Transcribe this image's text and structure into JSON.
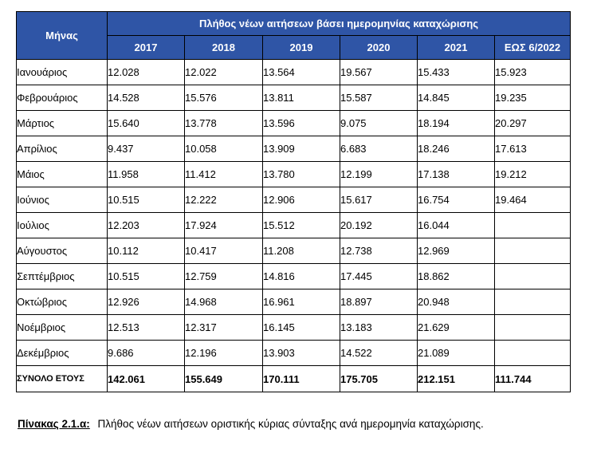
{
  "table": {
    "month_header": "Μήνας",
    "group_header": "Πλήθος νέων αιτήσεων βάσει ημερομηνίας καταχώρισης",
    "years": [
      "2017",
      "2018",
      "2019",
      "2020",
      "2021",
      "ΕΩΣ 6/2022"
    ],
    "rows": [
      {
        "month": "Ιανουάριος",
        "values": [
          "12.028",
          "12.022",
          "13.564",
          "19.567",
          "15.433",
          "15.923"
        ]
      },
      {
        "month": "Φεβρουάριος",
        "values": [
          "14.528",
          "15.576",
          "13.811",
          "15.587",
          "14.845",
          "19.235"
        ]
      },
      {
        "month": "Μάρτιος",
        "values": [
          "15.640",
          "13.778",
          "13.596",
          "9.075",
          "18.194",
          "20.297"
        ]
      },
      {
        "month": "Απρίλιος",
        "values": [
          "9.437",
          "10.058",
          "13.909",
          "6.683",
          "18.246",
          "17.613"
        ]
      },
      {
        "month": "Μάιος",
        "values": [
          "11.958",
          "11.412",
          "13.780",
          "12.199",
          "17.138",
          "19.212"
        ]
      },
      {
        "month": "Ιούνιος",
        "values": [
          "10.515",
          "12.222",
          "12.906",
          "15.617",
          "16.754",
          "19.464"
        ]
      },
      {
        "month": "Ιούλιος",
        "values": [
          "12.203",
          "17.924",
          "15.512",
          "20.192",
          "16.044",
          ""
        ]
      },
      {
        "month": "Αύγουστος",
        "values": [
          "10.112",
          "10.417",
          "11.208",
          "12.738",
          "12.969",
          ""
        ]
      },
      {
        "month": "Σεπτέμβριος",
        "values": [
          "10.515",
          "12.759",
          "14.816",
          "17.445",
          "18.862",
          ""
        ]
      },
      {
        "month": "Οκτώβριος",
        "values": [
          "12.926",
          "14.968",
          "16.961",
          "18.897",
          "20.948",
          ""
        ]
      },
      {
        "month": "Νοέμβριος",
        "values": [
          "12.513",
          "12.317",
          "16.145",
          "13.183",
          "21.629",
          ""
        ]
      },
      {
        "month": "Δεκέμβριος",
        "values": [
          "9.686",
          "12.196",
          "13.903",
          "14.522",
          "21.089",
          ""
        ]
      }
    ],
    "total_label": "ΣΥΝΟΛΟ ΕΤΟΥΣ",
    "totals": [
      "142.061",
      "155.649",
      "170.111",
      "175.705",
      "212.151",
      "111.744"
    ]
  },
  "caption": {
    "label": "Πίνακας 2.1.α:",
    "text": "Πλήθος νέων αιτήσεων οριστικής κύριας σύνταξης ανά ημερομηνία καταχώρισης."
  }
}
